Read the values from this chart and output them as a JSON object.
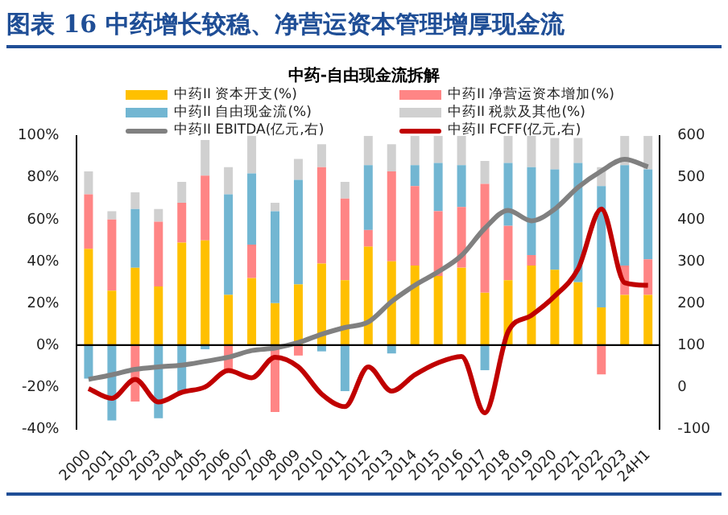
{
  "chart_data": {
    "type": "bar",
    "title": "图表 16 中药增长较稳、净营运资本管理增厚现金流",
    "subtitle": "中药-自由现金流拆解",
    "categories": [
      "2000",
      "2001",
      "2002",
      "2003",
      "2004",
      "2005",
      "2006",
      "2007",
      "2008",
      "2009",
      "2010",
      "2011",
      "2012",
      "2013",
      "2014",
      "2015",
      "2016",
      "2017",
      "2018",
      "2019",
      "2020",
      "2021",
      "2022",
      "2023",
      "24H1"
    ],
    "stacked": true,
    "legend": "top",
    "grid": false,
    "marker": "none",
    "series": [
      {
        "name": "中药II 资本开支(%)",
        "color": "#ffc000",
        "values": [
          46,
          26,
          37,
          28,
          49,
          50,
          24,
          32,
          20,
          29,
          39,
          31,
          47,
          40,
          38,
          33,
          37,
          25,
          31,
          38,
          36,
          30,
          18,
          24,
          24
        ]
      },
      {
        "name": "中药II 净营运资本增加(%)",
        "color": "#ff8585",
        "values": [
          26,
          34,
          -27,
          31,
          19,
          31,
          -12,
          16,
          -32,
          -5,
          46,
          39,
          8,
          43,
          38,
          31,
          29,
          52,
          26,
          5,
          null,
          0,
          -14,
          14,
          17
        ]
      },
      {
        "name": "中药II 自由现金流(%)",
        "color": "#72b6d2",
        "values": [
          -16,
          -36,
          28,
          -35,
          -23,
          -2,
          48,
          34,
          44,
          50,
          -3,
          -22,
          31,
          -4,
          10,
          23,
          20,
          -12,
          30,
          42,
          48,
          57,
          58,
          48,
          43
        ]
      },
      {
        "name": "中药II 税款及其他(%)",
        "color": "#d0d0d0",
        "values": [
          11,
          4,
          8,
          6,
          10,
          17,
          13,
          18,
          4,
          10,
          11,
          8,
          14,
          13,
          14,
          13,
          14,
          11,
          13,
          15,
          15,
          12,
          9,
          14,
          16
        ]
      },
      {
        "name": "中药II EBITDA(亿元,右)",
        "type": "line",
        "axis": "y2",
        "color": "#808080",
        "values": [
          18,
          29,
          42,
          48,
          52,
          61,
          71,
          87,
          93,
          106,
          126,
          142,
          155,
          204,
          243,
          275,
          314,
          379,
          422,
          397,
          425,
          477,
          516,
          544,
          526
        ]
      },
      {
        "name": "中药II FCFF(亿元,右)",
        "type": "line",
        "axis": "y2",
        "color": "#c00000",
        "values": [
          -4,
          -27,
          18,
          -36,
          -13,
          0,
          39,
          22,
          71,
          48,
          -17,
          -47,
          48,
          -10,
          29,
          58,
          73,
          -62,
          132,
          171,
          217,
          282,
          425,
          249,
          243
        ]
      }
    ],
    "ylim": [
      -40,
      100
    ],
    "yticks": [
      {
        "value": -40,
        "label": "-40%"
      },
      {
        "value": -20,
        "label": "-20%"
      },
      {
        "value": 0,
        "label": "0%"
      },
      {
        "value": 20,
        "label": "20%"
      },
      {
        "value": 40,
        "label": "40%"
      },
      {
        "value": 60,
        "label": "60%"
      },
      {
        "value": 80,
        "label": "80%"
      },
      {
        "value": 100,
        "label": "100%"
      }
    ],
    "y2lim": [
      -100,
      600
    ],
    "y2ticks": [
      -100,
      0,
      100,
      200,
      300,
      400,
      500,
      600
    ],
    "ref_lines": [
      {
        "axis": "y",
        "value": 0,
        "color": "#000000"
      }
    ]
  }
}
